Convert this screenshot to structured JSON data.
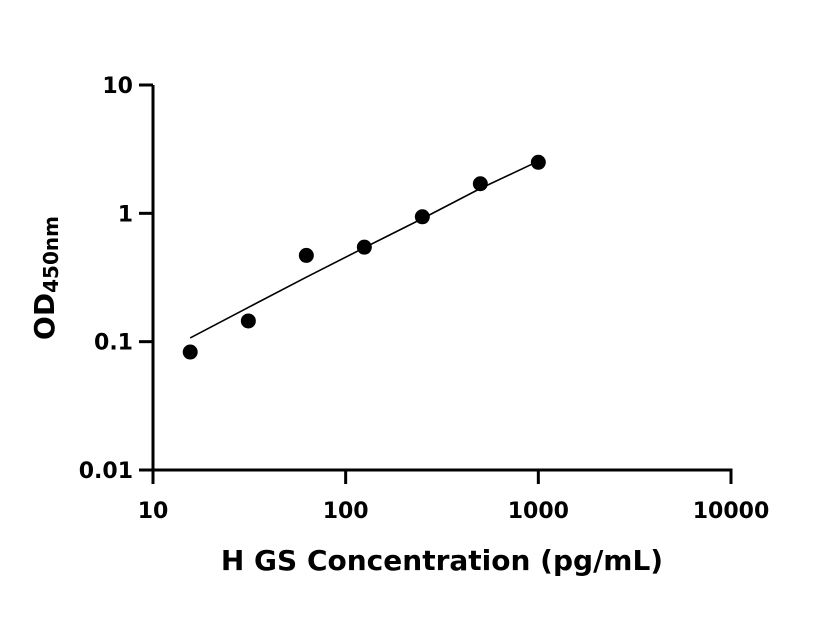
{
  "chart_data": {
    "type": "scatter",
    "xlabel": "H GS Concentration (pg/mL)",
    "ylabel": "OD",
    "ylabel_sub": "450nm",
    "x_scale": "log",
    "y_scale": "log",
    "xlim": [
      10,
      10000
    ],
    "ylim": [
      0.01,
      10
    ],
    "x_ticks": [
      10,
      100,
      1000,
      10000
    ],
    "x_tick_labels": [
      "10",
      "100",
      "1000",
      "10000"
    ],
    "y_ticks": [
      0.01,
      0.1,
      1,
      10
    ],
    "y_tick_labels": [
      "0.01",
      "0.1",
      "1",
      "10"
    ],
    "grid": false,
    "series": [
      {
        "x": [
          15.6,
          31.25,
          62.5,
          125,
          250,
          500,
          1000
        ],
        "y": [
          0.083,
          0.145,
          0.47,
          0.545,
          0.94,
          1.7,
          2.5
        ]
      }
    ],
    "fit_curve": {
      "x": [
        15.6,
        31.25,
        62.5,
        125,
        250,
        500,
        1000
      ],
      "y": [
        0.107,
        0.185,
        0.318,
        0.54,
        0.91,
        1.56,
        2.55
      ]
    },
    "colors": {
      "points": "#000000",
      "line": "#000000",
      "axes": "#000000"
    }
  }
}
